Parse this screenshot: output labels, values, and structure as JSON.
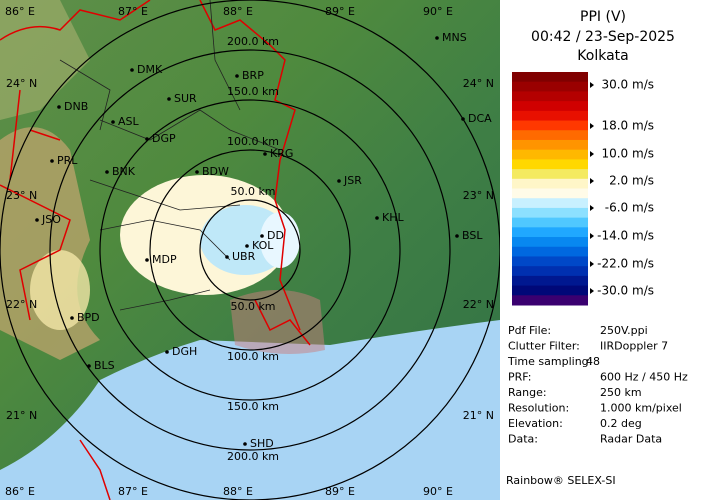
{
  "header": {
    "title": "PPI (V)",
    "time": "00:42 / 23-Sep-2025",
    "site": "Kolkata"
  },
  "legend": {
    "labels": [
      "30.0 m/s",
      "18.0 m/s",
      "10.0 m/s",
      "2.0 m/s",
      "-6.0 m/s",
      "-14.0 m/s",
      "-22.0 m/s",
      "-30.0 m/s"
    ]
  },
  "info": {
    "rows": [
      [
        "Pdf File:",
        "250V.ppi"
      ],
      [
        "Clutter Filter:",
        "IIRDoppler 7"
      ],
      [
        "Time sampling:",
        "48"
      ],
      [
        "PRF:",
        "600 Hz / 450 Hz"
      ],
      [
        "Range:",
        "250 km"
      ],
      [
        "Resolution:",
        "1.000 km/pixel"
      ],
      [
        "Elevation:",
        "0.2 deg"
      ],
      [
        "Data:",
        "Radar Data"
      ]
    ]
  },
  "footer": "Rainbow® SELEX-SI",
  "map": {
    "longitudes": [
      "86° E",
      "87° E",
      "88° E",
      "89° E",
      "90° E"
    ],
    "latitudes": [
      "24° N",
      "23° N",
      "22° N",
      "21° N"
    ],
    "ranges": [
      "200.0 km",
      "150.0 km",
      "100.0 km",
      "50.0 km"
    ],
    "cities": [
      "MNS",
      "DMK",
      "BRP",
      "SUR",
      "DNB",
      "ASL",
      "DGP",
      "DCA",
      "KRG",
      "PRL",
      "BNK",
      "BDW",
      "JSR",
      "KHL",
      "JSO",
      "BSL",
      "DD",
      "KOL",
      "MDP",
      "UBR",
      "BPD",
      "DGH",
      "BLS",
      "SHD"
    ]
  }
}
